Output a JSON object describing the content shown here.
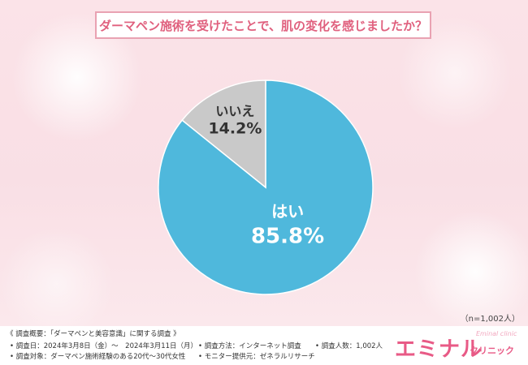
{
  "title": "ダーマペン施術を受けたことで、肌の変化を感じましたか？",
  "sample_note": "（n=1,002人）",
  "chart_data": {
    "type": "pie",
    "title": "ダーマペン施術を受けたことで、肌の変化を感じましたか？",
    "slices": [
      {
        "label": "はい",
        "value": 85.8,
        "display": "85.8%",
        "color": "#4fb8dc"
      },
      {
        "label": "いいえ",
        "value": 14.2,
        "display": "14.2%",
        "color": "#c9c9c9"
      }
    ],
    "legend": "none"
  },
  "footer": {
    "overview": "《 調査概要：「ダーマペンと美容意識」に関する調査 》",
    "date": "• 調査日：2024年3月8日（金）～　2024年3月11日（月）",
    "target": "• 調査対象：ダーマペン施術経験のある20代～30代女性",
    "method": "• 調査方法：インターネット調査",
    "provider": "• モニター提供元：ゼネラルリサーチ",
    "count": "• 調査人数：1,002人"
  },
  "logo": {
    "main": "エミナル",
    "sub": "クリニック",
    "small": "Eminal clinic"
  },
  "colors": {
    "accent": "#e0607e",
    "yes": "#4fb8dc",
    "no": "#c9c9c9"
  }
}
